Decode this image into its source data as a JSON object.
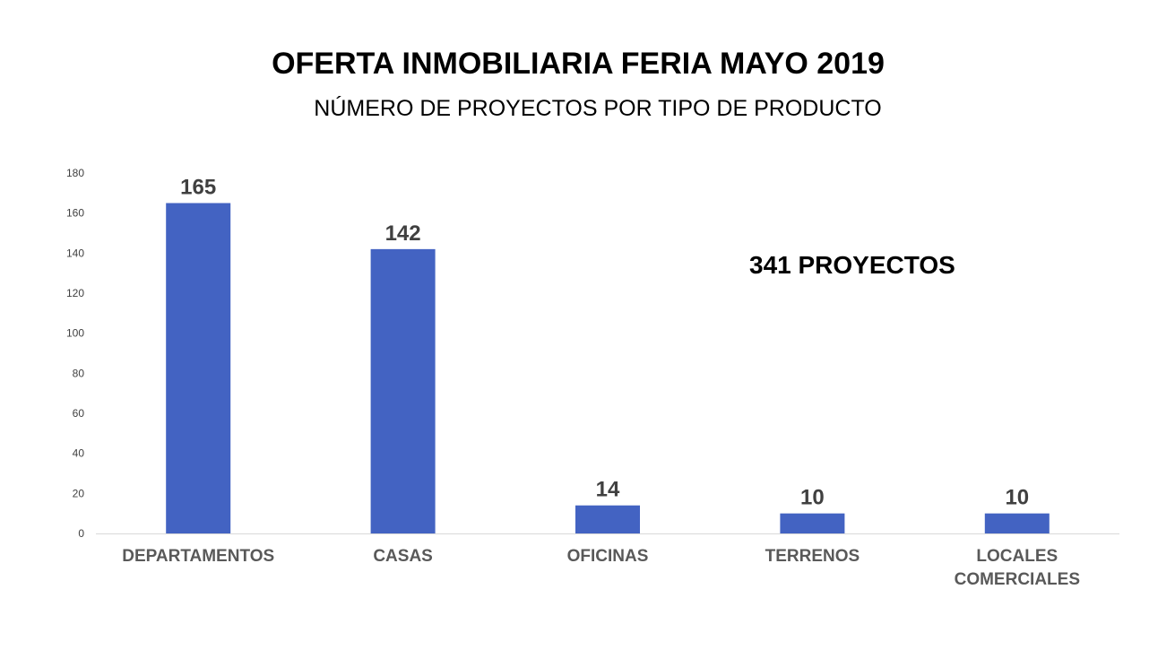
{
  "chart_data": {
    "type": "bar",
    "title": "OFERTA INMOBILIARIA FERIA MAYO 2019",
    "subtitle": "NÚMERO DE PROYECTOS POR TIPO DE PRODUCTO",
    "categories": [
      [
        "DEPARTAMENTOS"
      ],
      [
        "CASAS"
      ],
      [
        "OFICINAS"
      ],
      [
        "TERRENOS"
      ],
      [
        "LOCALES",
        "COMERCIALES"
      ]
    ],
    "values": [
      165,
      142,
      14,
      10,
      10
    ],
    "data_labels": [
      "165",
      "142",
      "14",
      "10",
      "10"
    ],
    "yticks": [
      "0",
      "20",
      "40",
      "60",
      "80",
      "100",
      "120",
      "140",
      "160",
      "180"
    ],
    "ylim": [
      0,
      180
    ],
    "xlabel": "",
    "ylabel": "",
    "grid": false,
    "annotation": "341 PROYECTOS",
    "colors": {
      "bar": "#4363C2",
      "axis": "#D9D9D9",
      "tick_text": "#404040",
      "category_text": "#595959",
      "data_label_text": "#404040"
    }
  }
}
